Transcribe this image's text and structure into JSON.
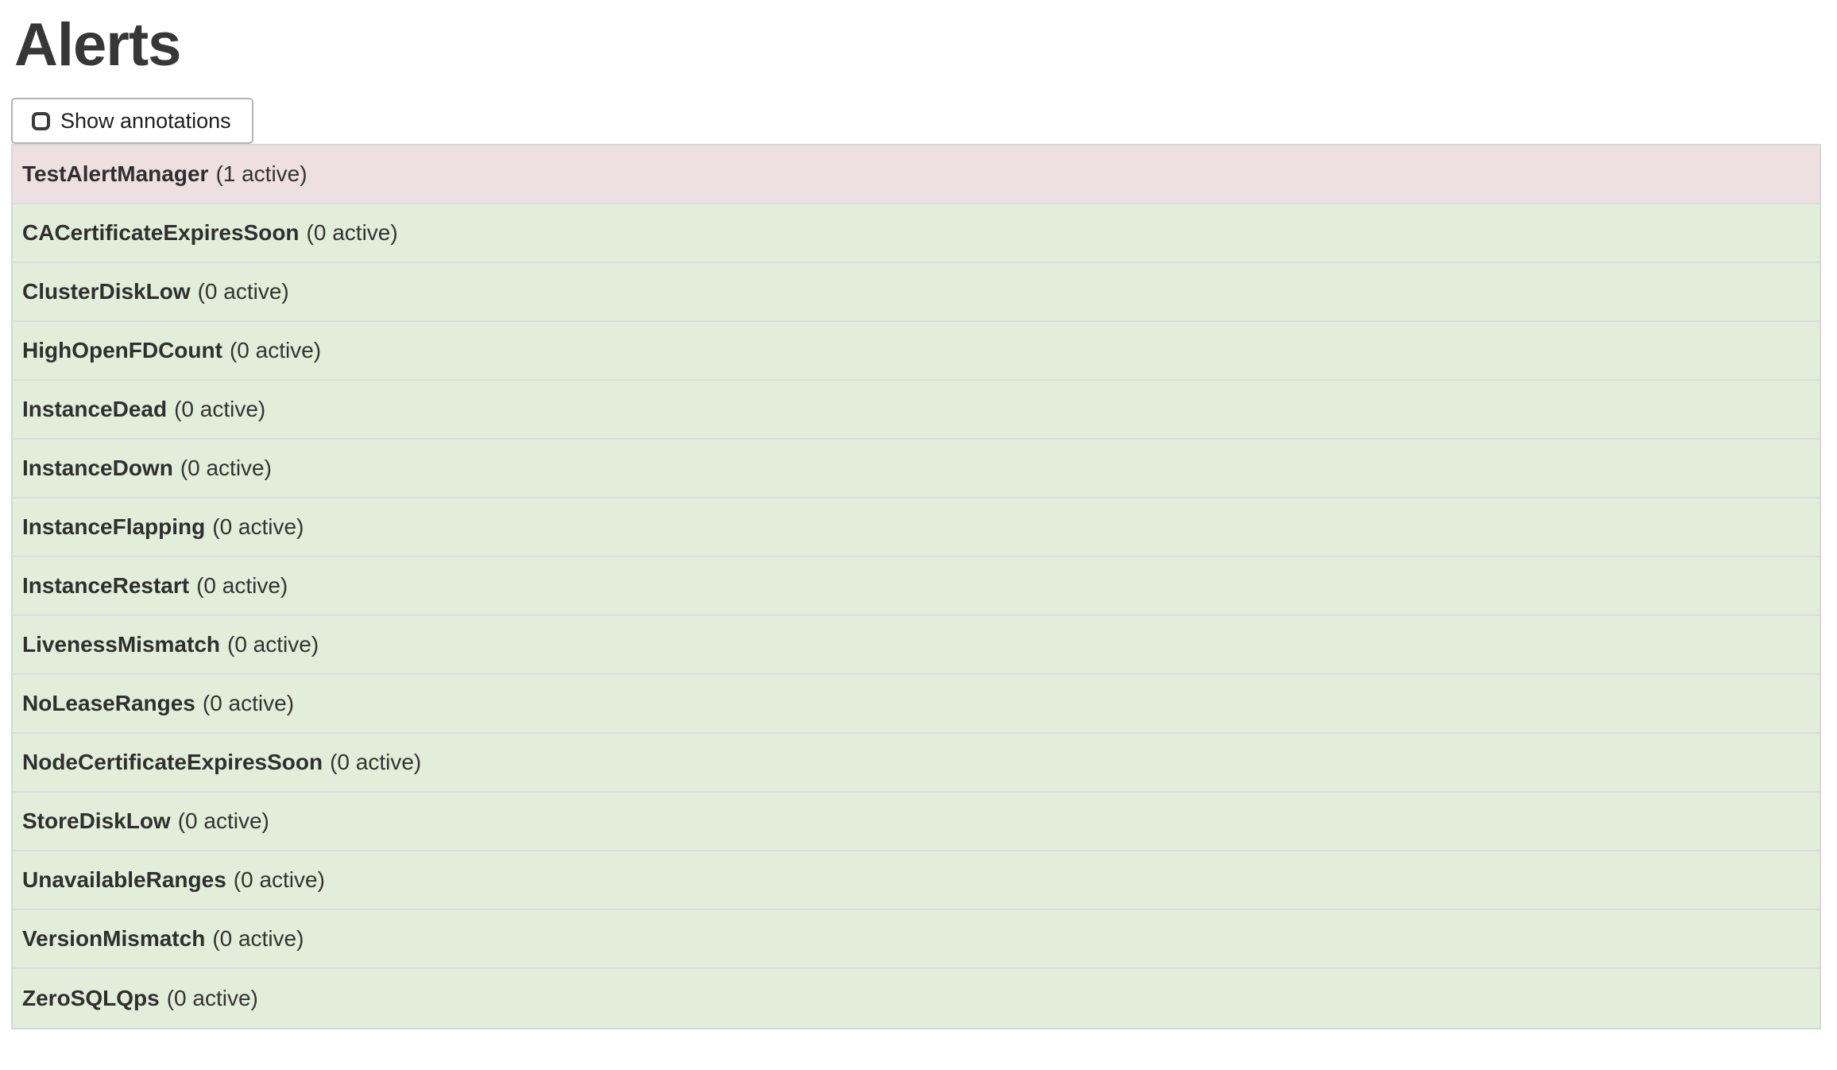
{
  "page": {
    "title": "Alerts"
  },
  "toolbar": {
    "show_annotations_label": "Show annotations",
    "show_annotations_checked": false
  },
  "alerts": {
    "items": [
      {
        "name": "TestAlertManager",
        "active_count": 1,
        "count_label": "(1 active)",
        "state": "firing"
      },
      {
        "name": "CACertificateExpiresSoon",
        "active_count": 0,
        "count_label": "(0 active)",
        "state": "inactive"
      },
      {
        "name": "ClusterDiskLow",
        "active_count": 0,
        "count_label": "(0 active)",
        "state": "inactive"
      },
      {
        "name": "HighOpenFDCount",
        "active_count": 0,
        "count_label": "(0 active)",
        "state": "inactive"
      },
      {
        "name": "InstanceDead",
        "active_count": 0,
        "count_label": "(0 active)",
        "state": "inactive"
      },
      {
        "name": "InstanceDown",
        "active_count": 0,
        "count_label": "(0 active)",
        "state": "inactive"
      },
      {
        "name": "InstanceFlapping",
        "active_count": 0,
        "count_label": "(0 active)",
        "state": "inactive"
      },
      {
        "name": "InstanceRestart",
        "active_count": 0,
        "count_label": "(0 active)",
        "state": "inactive"
      },
      {
        "name": "LivenessMismatch",
        "active_count": 0,
        "count_label": "(0 active)",
        "state": "inactive"
      },
      {
        "name": "NoLeaseRanges",
        "active_count": 0,
        "count_label": "(0 active)",
        "state": "inactive"
      },
      {
        "name": "NodeCertificateExpiresSoon",
        "active_count": 0,
        "count_label": "(0 active)",
        "state": "inactive"
      },
      {
        "name": "StoreDiskLow",
        "active_count": 0,
        "count_label": "(0 active)",
        "state": "inactive"
      },
      {
        "name": "UnavailableRanges",
        "active_count": 0,
        "count_label": "(0 active)",
        "state": "inactive"
      },
      {
        "name": "VersionMismatch",
        "active_count": 0,
        "count_label": "(0 active)",
        "state": "inactive"
      },
      {
        "name": "ZeroSQLQps",
        "active_count": 0,
        "count_label": "(0 active)",
        "state": "inactive"
      }
    ]
  },
  "colors": {
    "firing_row_bg": "#eedfe0",
    "inactive_row_bg": "#e2eed9",
    "row_divider": "#dcdde0",
    "list_border": "#d6d7d9",
    "text": "#333333",
    "title_text": "#373737",
    "button_border": "#b4b4b4"
  }
}
